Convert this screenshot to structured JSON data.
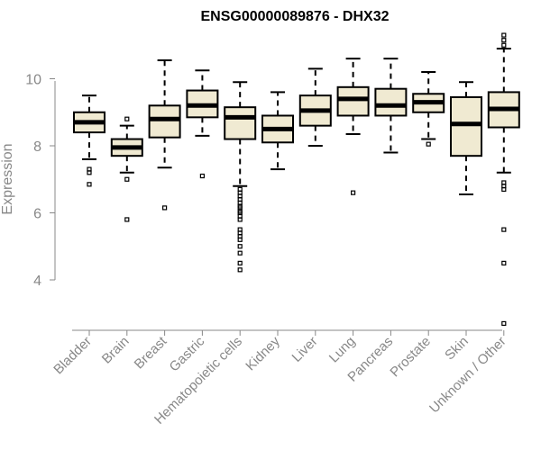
{
  "chart_data": {
    "type": "boxplot",
    "title": "ENSG00000089876 - DHX32",
    "xlabel": "",
    "ylabel": "Expression",
    "ylim": [
      2.5,
      11.5
    ],
    "yticks": [
      4,
      6,
      8,
      10
    ],
    "grid": false,
    "box_fill": "#f0ead2",
    "box_stroke": "#000000",
    "categories": [
      "Bladder",
      "Brain",
      "Breast",
      "Gastric",
      "Hematopoietic cells",
      "Kidney",
      "Liver",
      "Lung",
      "Pancreas",
      "Prostate",
      "Skin",
      "Unknown / Other"
    ],
    "boxes": [
      {
        "whisker_low": 7.6,
        "q1": 8.4,
        "median": 8.7,
        "q3": 9.0,
        "whisker_high": 9.5,
        "outliers": [
          7.3,
          7.2,
          6.85
        ]
      },
      {
        "whisker_low": 7.2,
        "q1": 7.7,
        "median": 7.95,
        "q3": 8.2,
        "whisker_high": 8.6,
        "outliers": [
          8.8,
          7.0,
          5.8
        ]
      },
      {
        "whisker_low": 7.35,
        "q1": 8.25,
        "median": 8.8,
        "q3": 9.2,
        "whisker_high": 10.55,
        "outliers": [
          6.15
        ]
      },
      {
        "whisker_low": 8.3,
        "q1": 8.85,
        "median": 9.2,
        "q3": 9.65,
        "whisker_high": 10.25,
        "outliers": [
          7.1
        ]
      },
      {
        "whisker_low": 6.8,
        "q1": 8.2,
        "median": 8.85,
        "q3": 9.15,
        "whisker_high": 9.9,
        "outliers": [
          6.7,
          6.6,
          6.5,
          6.4,
          6.3,
          6.2,
          6.15,
          6.05,
          6.0,
          5.9,
          5.8,
          5.5,
          5.4,
          5.3,
          5.2,
          5.0,
          4.8,
          4.5,
          4.3
        ]
      },
      {
        "whisker_low": 7.3,
        "q1": 8.1,
        "median": 8.5,
        "q3": 8.9,
        "whisker_high": 9.6,
        "outliers": []
      },
      {
        "whisker_low": 8.0,
        "q1": 8.6,
        "median": 9.05,
        "q3": 9.5,
        "whisker_high": 10.3,
        "outliers": []
      },
      {
        "whisker_low": 8.35,
        "q1": 8.9,
        "median": 9.4,
        "q3": 9.75,
        "whisker_high": 10.6,
        "outliers": [
          6.6
        ]
      },
      {
        "whisker_low": 7.8,
        "q1": 8.9,
        "median": 9.2,
        "q3": 9.7,
        "whisker_high": 10.6,
        "outliers": []
      },
      {
        "whisker_low": 8.2,
        "q1": 9.0,
        "median": 9.3,
        "q3": 9.55,
        "whisker_high": 10.2,
        "outliers": [
          8.05
        ]
      },
      {
        "whisker_low": 6.55,
        "q1": 7.7,
        "median": 8.65,
        "q3": 9.45,
        "whisker_high": 9.9,
        "outliers": []
      },
      {
        "whisker_low": 7.2,
        "q1": 8.55,
        "median": 9.1,
        "q3": 9.6,
        "whisker_high": 10.9,
        "outliers": [
          11.3,
          11.15,
          11.0,
          6.9,
          6.8,
          6.7,
          5.5,
          4.5,
          2.7
        ]
      }
    ]
  }
}
